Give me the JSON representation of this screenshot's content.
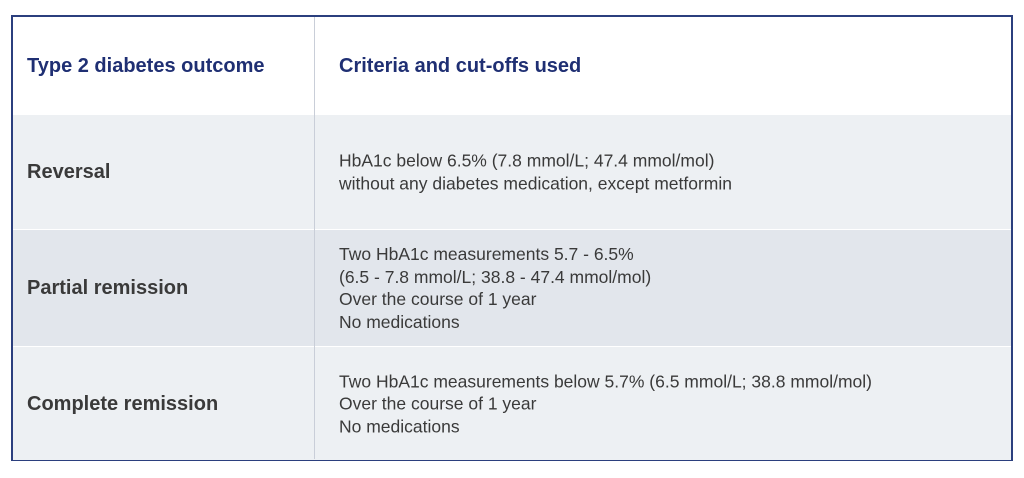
{
  "table": {
    "header": {
      "outcome": "Type 2 diabetes outcome",
      "criteria": "Criteria and cut-offs used"
    },
    "rows": [
      {
        "outcome": "Reversal",
        "criteria": [
          "HbA1c below 6.5% (7.8 mmol/L; 47.4 mmol/mol)",
          "without any diabetes medication, except metformin"
        ]
      },
      {
        "outcome": "Partial remission",
        "criteria": [
          "Two HbA1c measurements 5.7 - 6.5%",
          "(6.5 - 7.8 mmol/L; 38.8 - 47.4 mmol/mol)",
          "Over the course of 1 year",
          "No medications"
        ]
      },
      {
        "outcome": "Complete remission",
        "criteria": [
          "Two HbA1c measurements below 5.7% (6.5 mmol/L; 38.8 mmol/mol)",
          "Over the course of 1 year",
          "No medications"
        ]
      }
    ]
  },
  "colors": {
    "border": "#2b3f7e",
    "header_text": "#1f2f73",
    "row_light": "#edf0f3",
    "row_dark": "#e2e6ec",
    "body_text": "#3a3a3a"
  }
}
